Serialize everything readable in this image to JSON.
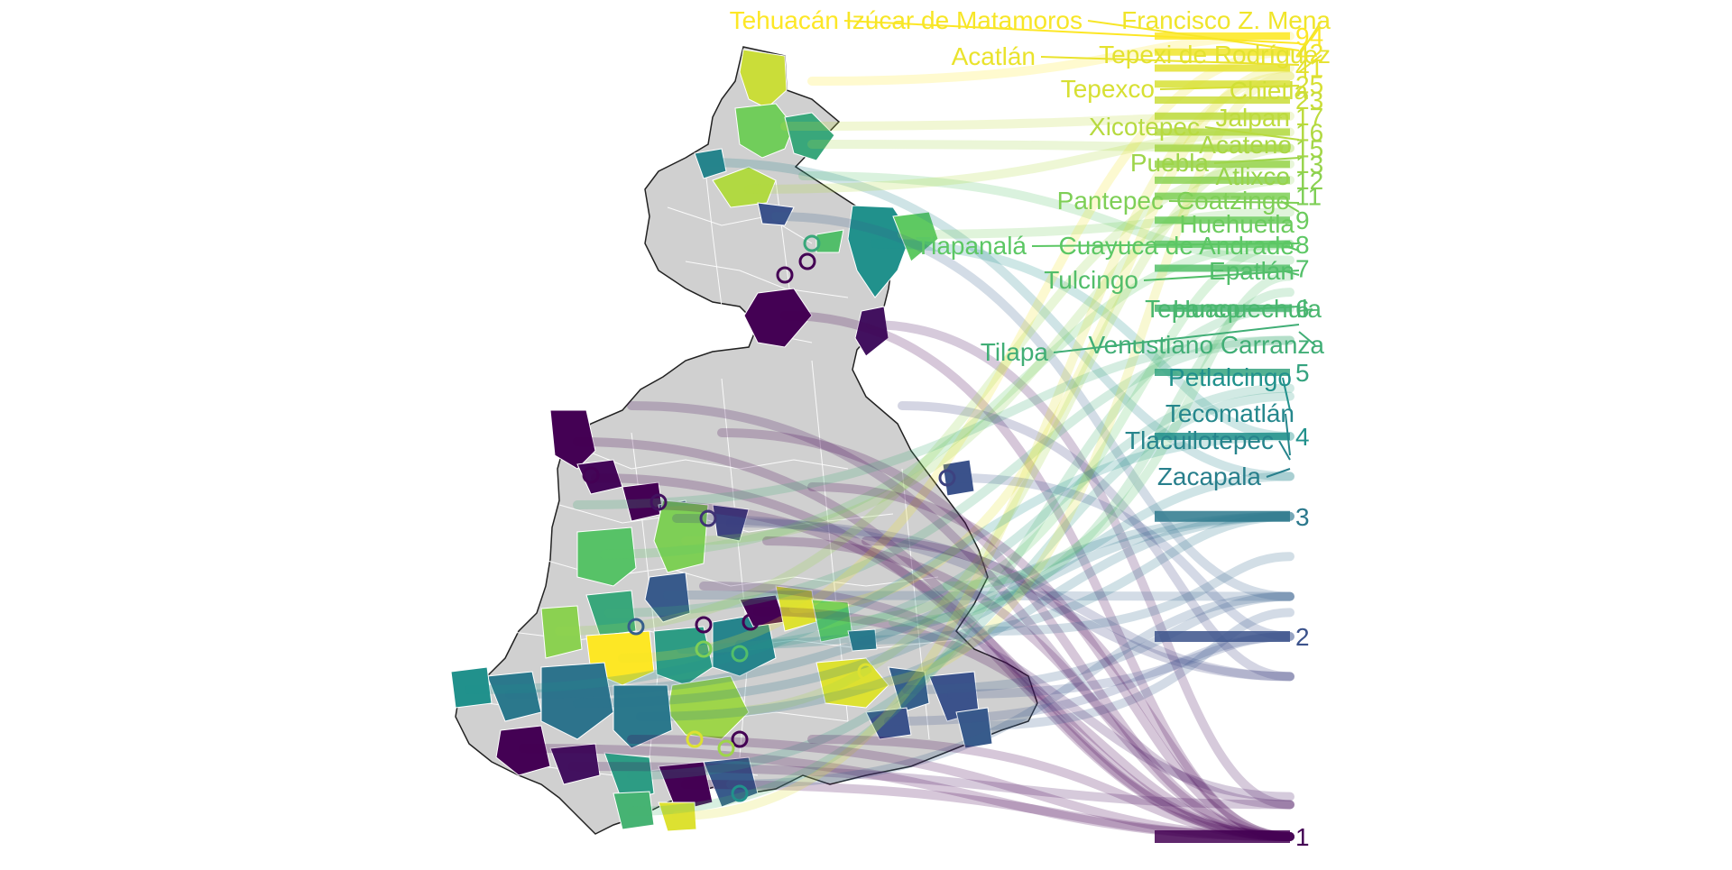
{
  "title": "",
  "legend_scale": {
    "type": "viridis",
    "stops": [
      "#440154",
      "#3b528b",
      "#21918c",
      "#5ec962",
      "#fde725"
    ]
  },
  "map": {
    "fill_default": "#d0d0d0",
    "border_color": "#ffffff",
    "outline_color": "#222222"
  },
  "count_labels": [
    {
      "value": "94",
      "rank": 1.0
    },
    {
      "value": "42",
      "rank": 0.98
    },
    {
      "value": "41",
      "rank": 0.96
    },
    {
      "value": "25",
      "rank": 0.94
    },
    {
      "value": "23",
      "rank": 0.92
    },
    {
      "value": "17",
      "rank": 0.9
    },
    {
      "value": "16",
      "rank": 0.88
    },
    {
      "value": "15",
      "rank": 0.86
    },
    {
      "value": "13",
      "rank": 0.84
    },
    {
      "value": "12",
      "rank": 0.82
    },
    {
      "value": "11",
      "rank": 0.8
    },
    {
      "value": "9",
      "rank": 0.77
    },
    {
      "value": "8",
      "rank": 0.74
    },
    {
      "value": "7",
      "rank": 0.71
    },
    {
      "value": "6",
      "rank": 0.66
    },
    {
      "value": "5",
      "rank": 0.58
    },
    {
      "value": "4",
      "rank": 0.5
    },
    {
      "value": "3",
      "rank": 0.4
    },
    {
      "value": "2",
      "rank": 0.25
    },
    {
      "value": "1",
      "rank": 0.0
    }
  ],
  "municipality_labels": [
    {
      "name": "Tehuacán",
      "level": 1.0
    },
    {
      "name": "Izúcar de Matamoros",
      "level": 0.99
    },
    {
      "name": "Francisco Z. Mena",
      "level": 0.98
    },
    {
      "name": "Acatlán",
      "level": 0.97
    },
    {
      "name": "Tepexi de Rodríguez",
      "level": 0.96
    },
    {
      "name": "Tepexco",
      "level": 0.94
    },
    {
      "name": "Chietla",
      "level": 0.93
    },
    {
      "name": "Jalpan",
      "level": 0.9
    },
    {
      "name": "Xicotepec",
      "level": 0.89
    },
    {
      "name": "Acateno",
      "level": 0.87
    },
    {
      "name": "Puebla",
      "level": 0.85
    },
    {
      "name": "Atlixco",
      "level": 0.84
    },
    {
      "name": "Pantepec",
      "level": 0.8
    },
    {
      "name": "Coatzingo",
      "level": 0.8
    },
    {
      "name": "Huehuetla",
      "level": 0.77
    },
    {
      "name": "Tlapanalá",
      "level": 0.74
    },
    {
      "name": "Cuayuca de Andrade",
      "level": 0.74
    },
    {
      "name": "Tulcingo",
      "level": 0.7
    },
    {
      "name": "Epatlán",
      "level": 0.7
    },
    {
      "name": "Tepanco",
      "level": 0.67
    },
    {
      "name": "Huaquechula",
      "level": 0.67
    },
    {
      "name": "Tilapa",
      "level": 0.63
    },
    {
      "name": "Venustiano Carranza",
      "level": 0.63
    },
    {
      "name": "Petlalcingo",
      "level": 0.5
    },
    {
      "name": "Tecomatlán",
      "level": 0.46
    },
    {
      "name": "Tlacuilotepec",
      "level": 0.45
    },
    {
      "name": "Zacapala",
      "level": 0.43
    }
  ]
}
